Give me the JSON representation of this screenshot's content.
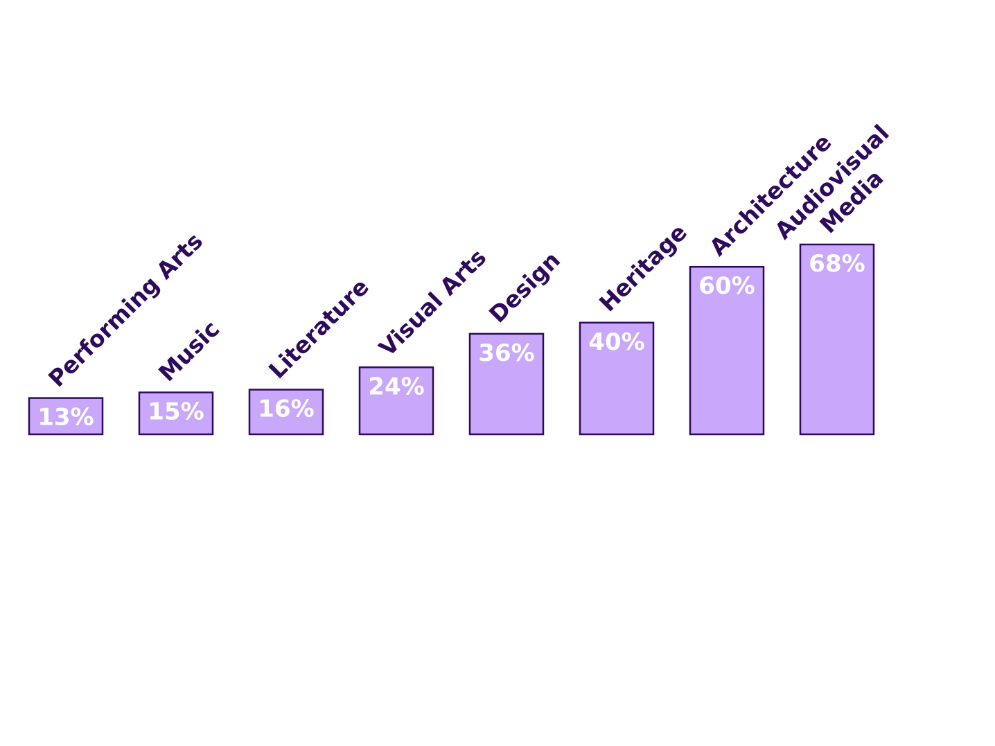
{
  "chart_data": {
    "type": "bar",
    "categories": [
      [
        "Performing Arts"
      ],
      [
        "Music"
      ],
      [
        "Literature"
      ],
      [
        "Visual Arts"
      ],
      [
        "Design"
      ],
      [
        "Heritage"
      ],
      [
        "Architecture"
      ],
      [
        "Audiovisual",
        "Media"
      ]
    ],
    "values": [
      13,
      15,
      16,
      24,
      36,
      40,
      60,
      68
    ],
    "value_labels": [
      "13%",
      "15%",
      "16%",
      "24%",
      "36%",
      "40%",
      "60%",
      "68%"
    ],
    "unit": "%",
    "ylim": [
      0,
      100
    ],
    "grid": false,
    "legend": "none"
  },
  "colors": {
    "bar_fill": "#c9a8fb",
    "bar_stroke": "#2d0a5c",
    "label_text": "#2d0a5c",
    "value_text": "#ffffff",
    "background": "#ffffff"
  }
}
